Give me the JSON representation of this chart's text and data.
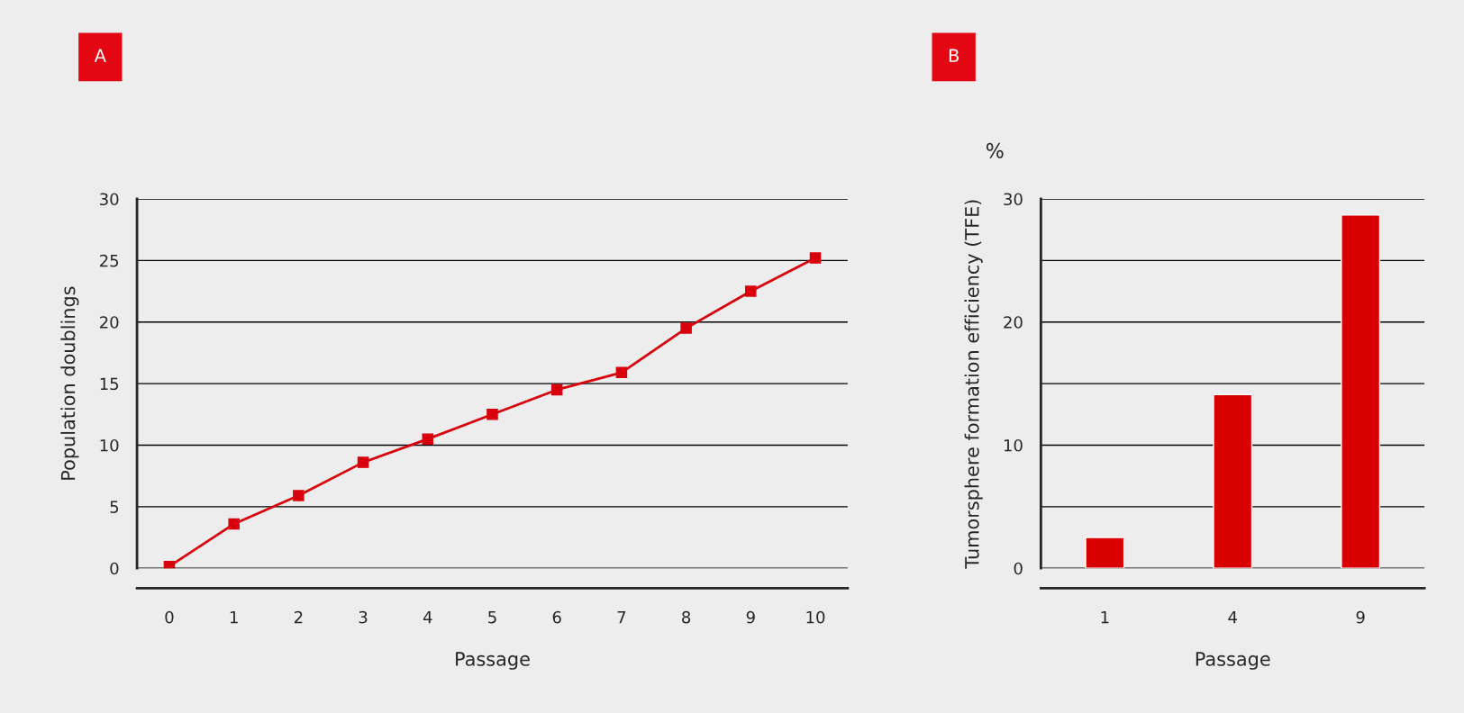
{
  "chart_data": [
    {
      "type": "line",
      "xlabel": "Passage",
      "ylabel": "Population doublings",
      "annotations": [
        "A"
      ],
      "categories": [
        "0",
        "1",
        "2",
        "3",
        "4",
        "5",
        "6",
        "7",
        "8",
        "9",
        "10"
      ],
      "series": [
        {
          "color": "#d9000d",
          "values": [
            0.15,
            3.6,
            5.9,
            8.6,
            10.5,
            12.5,
            14.5,
            15.9,
            19.5,
            22.5,
            25.2
          ]
        }
      ],
      "ylim": [
        0,
        30
      ],
      "yticks": [
        0,
        5,
        10,
        15,
        20,
        25,
        30
      ],
      "grid": "y",
      "marker": "square",
      "line_style": "solid"
    },
    {
      "type": "bar",
      "xlabel": "Passage",
      "ylabel": "Tumorsphere formation efficiency (TFE)",
      "annotations": [
        "B",
        "%"
      ],
      "categories": [
        "1",
        "4",
        "9"
      ],
      "series": [
        {
          "color": "#d90000",
          "values": [
            2.5,
            14.1,
            28.7
          ]
        }
      ],
      "ylim": [
        0,
        30
      ],
      "yticks": [
        0,
        {
          "value": 5,
          "label": null
        },
        10,
        {
          "value": 15,
          "label": null
        },
        20,
        {
          "value": 25,
          "label": null
        },
        30
      ],
      "grid": "y"
    }
  ]
}
